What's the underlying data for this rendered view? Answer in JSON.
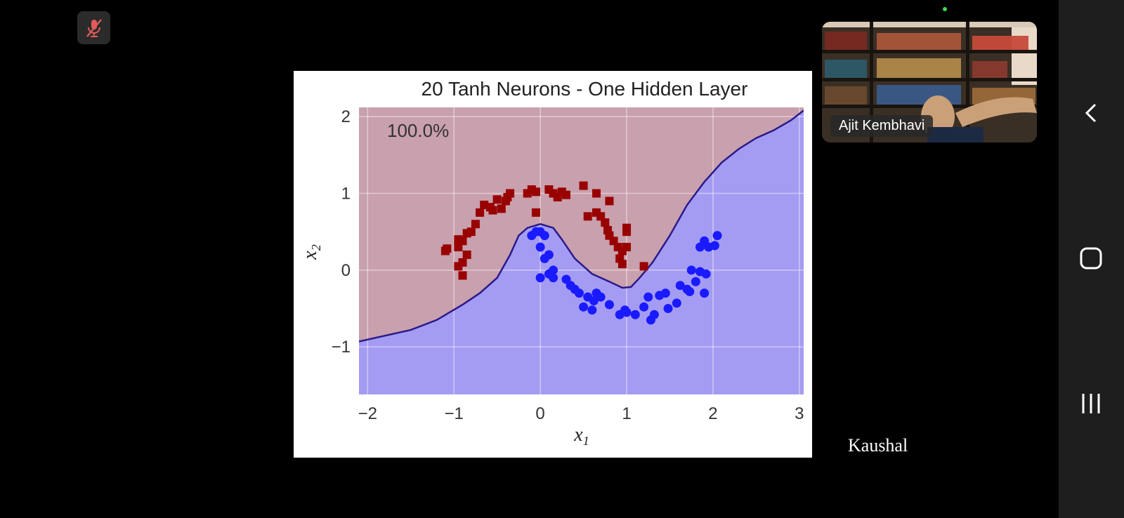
{
  "meeting": {
    "mute_icon": "microphone-muted-icon",
    "active_speaker_name": "Ajit Kembhavi",
    "participant_label": "Kaushal"
  },
  "chart_data": {
    "type": "scatter",
    "title": "20 Tanh Neurons - One Hidden Layer",
    "xlabel": "x1",
    "ylabel": "x2",
    "xlim": [
      -2.1,
      3.05
    ],
    "ylim": [
      -1.62,
      2.12
    ],
    "xticks": [
      "−2",
      "−1",
      "0",
      "1",
      "2",
      "3"
    ],
    "yticks": [
      "−1",
      "0",
      "1",
      "2"
    ],
    "annotation": "100.0%",
    "grid": true,
    "colors": {
      "class0_region": "#c9a0ad",
      "class1_region": "#a49cf2",
      "class0": "#990000",
      "class1": "#1a1aff",
      "boundary": "#2a1a8c"
    },
    "series": [
      {
        "marker": "square",
        "color": "#990000",
        "points": [
          [
            -1.08,
            0.28
          ],
          [
            -1.1,
            0.25
          ],
          [
            -0.95,
            0.4
          ],
          [
            -0.95,
            0.3
          ],
          [
            -0.9,
            0.38
          ],
          [
            -0.85,
            0.2
          ],
          [
            -0.9,
            0.1
          ],
          [
            -0.95,
            0.05
          ],
          [
            -0.9,
            -0.07
          ],
          [
            -0.85,
            0.48
          ],
          [
            -0.8,
            0.5
          ],
          [
            -0.75,
            0.6
          ],
          [
            -0.7,
            0.75
          ],
          [
            -0.65,
            0.85
          ],
          [
            -0.58,
            0.82
          ],
          [
            -0.55,
            0.78
          ],
          [
            -0.5,
            0.92
          ],
          [
            -0.45,
            0.8
          ],
          [
            -0.4,
            0.9
          ],
          [
            -0.38,
            0.95
          ],
          [
            -0.35,
            1.0
          ],
          [
            -0.15,
            1.0
          ],
          [
            -0.1,
            1.05
          ],
          [
            -0.05,
            1.02
          ],
          [
            -0.05,
            0.75
          ],
          [
            0.1,
            1.05
          ],
          [
            0.15,
            1.0
          ],
          [
            0.2,
            0.95
          ],
          [
            0.25,
            1.02
          ],
          [
            0.3,
            0.98
          ],
          [
            0.5,
            1.1
          ],
          [
            0.65,
            1.0
          ],
          [
            0.8,
            0.9
          ],
          [
            0.55,
            0.7
          ],
          [
            0.65,
            0.75
          ],
          [
            0.7,
            0.7
          ],
          [
            0.75,
            0.62
          ],
          [
            0.78,
            0.52
          ],
          [
            0.8,
            0.45
          ],
          [
            0.85,
            0.38
          ],
          [
            0.9,
            0.3
          ],
          [
            0.95,
            0.25
          ],
          [
            0.92,
            0.15
          ],
          [
            0.95,
            0.08
          ],
          [
            1.0,
            0.3
          ],
          [
            1.0,
            0.55
          ],
          [
            1.0,
            0.5
          ],
          [
            1.2,
            0.05
          ]
        ]
      },
      {
        "marker": "circle",
        "color": "#1a1aff",
        "points": [
          [
            -0.1,
            0.45
          ],
          [
            -0.05,
            0.5
          ],
          [
            0.0,
            0.5
          ],
          [
            0.05,
            0.45
          ],
          [
            0.0,
            0.3
          ],
          [
            0.05,
            0.15
          ],
          [
            0.1,
            0.2
          ],
          [
            0.0,
            -0.1
          ],
          [
            0.1,
            -0.05
          ],
          [
            0.15,
            -0.1
          ],
          [
            0.15,
            0.0
          ],
          [
            0.3,
            -0.12
          ],
          [
            0.35,
            -0.2
          ],
          [
            0.4,
            -0.25
          ],
          [
            0.45,
            -0.3
          ],
          [
            0.5,
            -0.48
          ],
          [
            0.55,
            -0.35
          ],
          [
            0.6,
            -0.52
          ],
          [
            0.65,
            -0.3
          ],
          [
            0.62,
            -0.4
          ],
          [
            0.7,
            -0.35
          ],
          [
            0.8,
            -0.45
          ],
          [
            0.92,
            -0.58
          ],
          [
            0.98,
            -0.52
          ],
          [
            1.0,
            -0.55
          ],
          [
            1.1,
            -0.58
          ],
          [
            1.2,
            -0.48
          ],
          [
            1.25,
            -0.35
          ],
          [
            1.28,
            -0.65
          ],
          [
            1.32,
            -0.58
          ],
          [
            1.38,
            -0.33
          ],
          [
            1.45,
            -0.3
          ],
          [
            1.48,
            -0.5
          ],
          [
            1.58,
            -0.43
          ],
          [
            1.62,
            -0.2
          ],
          [
            1.7,
            -0.25
          ],
          [
            1.73,
            -0.28
          ],
          [
            1.75,
            0.0
          ],
          [
            1.8,
            -0.15
          ],
          [
            1.85,
            -0.02
          ],
          [
            1.9,
            -0.3
          ],
          [
            1.92,
            -0.05
          ],
          [
            1.85,
            0.3
          ],
          [
            1.9,
            0.38
          ],
          [
            1.95,
            0.3
          ],
          [
            2.02,
            0.32
          ],
          [
            2.05,
            0.45
          ]
        ]
      }
    ],
    "boundary": [
      [
        -2.1,
        -0.93
      ],
      [
        -1.5,
        -0.78
      ],
      [
        -1.2,
        -0.65
      ],
      [
        -0.9,
        -0.45
      ],
      [
        -0.7,
        -0.3
      ],
      [
        -0.5,
        -0.1
      ],
      [
        -0.35,
        0.2
      ],
      [
        -0.25,
        0.45
      ],
      [
        -0.15,
        0.55
      ],
      [
        0.0,
        0.6
      ],
      [
        0.15,
        0.55
      ],
      [
        0.25,
        0.4
      ],
      [
        0.4,
        0.15
      ],
      [
        0.6,
        -0.05
      ],
      [
        0.8,
        -0.15
      ],
      [
        0.95,
        -0.23
      ],
      [
        1.05,
        -0.22
      ],
      [
        1.15,
        -0.1
      ],
      [
        1.3,
        0.1
      ],
      [
        1.5,
        0.45
      ],
      [
        1.7,
        0.85
      ],
      [
        1.9,
        1.15
      ],
      [
        2.1,
        1.4
      ],
      [
        2.3,
        1.58
      ],
      [
        2.5,
        1.72
      ],
      [
        2.7,
        1.82
      ],
      [
        2.9,
        1.95
      ],
      [
        3.05,
        2.08
      ]
    ]
  }
}
